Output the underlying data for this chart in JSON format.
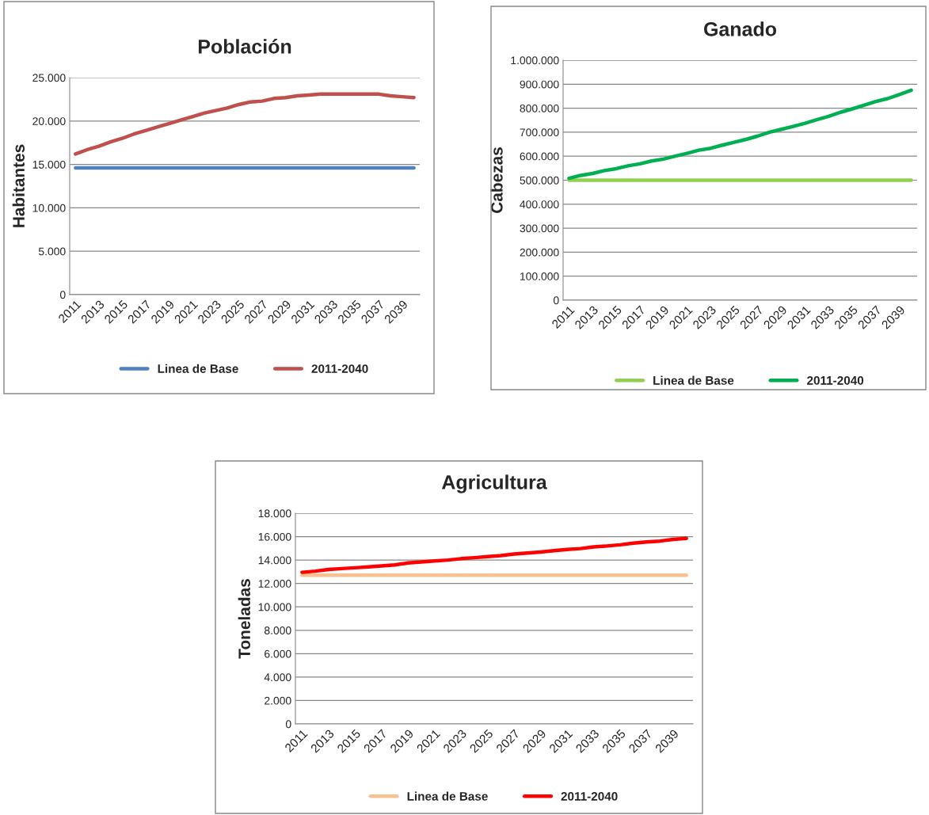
{
  "chart_data": [
    {
      "type": "line",
      "title": "Población",
      "ylabel": "Habitantes",
      "categories": [
        "2011",
        null,
        "2013",
        null,
        "2015",
        null,
        "2017",
        null,
        "2019",
        null,
        "2021",
        null,
        "2023",
        null,
        "2025",
        null,
        "2027",
        null,
        "2029",
        null,
        "2031",
        null,
        "2033",
        null,
        "2035",
        null,
        "2037",
        null,
        "2039",
        null
      ],
      "series": [
        {
          "name": "Linea de Base",
          "color": "#4f81bd",
          "values": [
            14600,
            14600,
            14600,
            14600,
            14600,
            14600,
            14600,
            14600,
            14600,
            14600,
            14600,
            14600,
            14600,
            14600,
            14600,
            14600,
            14600,
            14600,
            14600,
            14600,
            14600,
            14600,
            14600,
            14600,
            14600,
            14600,
            14600,
            14600,
            14600,
            14600
          ]
        },
        {
          "name": "2011-2040",
          "color": "#c0504d",
          "values": [
            16200,
            16700,
            17100,
            17600,
            18000,
            18500,
            18900,
            19300,
            19700,
            20100,
            20500,
            20900,
            21200,
            21500,
            21900,
            22200,
            22300,
            22600,
            22700,
            22900,
            23000,
            23100,
            23100,
            23100,
            23100,
            23100,
            23100,
            22900,
            22800,
            22700
          ]
        }
      ],
      "ylim": [
        0,
        25000
      ],
      "yticks": [
        {
          "value": 0,
          "label": "0"
        },
        {
          "value": 5000,
          "label": "5.000"
        },
        {
          "value": 10000,
          "label": "10.000"
        },
        {
          "value": 15000,
          "label": "15.000"
        },
        {
          "value": 20000,
          "label": "20.000"
        },
        {
          "value": 25000,
          "label": "25.000"
        }
      ],
      "grid": "y",
      "legend": "bottom",
      "line_style": "solid",
      "marker": "none"
    },
    {
      "type": "line",
      "title": "Ganado",
      "ylabel": "Cabezas",
      "categories": [
        "2011",
        null,
        "2013",
        null,
        "2015",
        null,
        "2017",
        null,
        "2019",
        null,
        "2021",
        null,
        "2023",
        null,
        "2025",
        null,
        "2027",
        null,
        "2029",
        null,
        "2031",
        null,
        "2033",
        null,
        "2035",
        null,
        "2037",
        null,
        "2039",
        null
      ],
      "series": [
        {
          "name": "Linea de Base",
          "color": "#92d050",
          "values": [
            500000,
            500000,
            500000,
            500000,
            500000,
            500000,
            500000,
            500000,
            500000,
            500000,
            500000,
            500000,
            500000,
            500000,
            500000,
            500000,
            500000,
            500000,
            500000,
            500000,
            500000,
            500000,
            500000,
            500000,
            500000,
            500000,
            500000,
            500000,
            500000,
            500000
          ]
        },
        {
          "name": "2011-2040",
          "color": "#00b050",
          "values": [
            508000,
            520000,
            528000,
            540000,
            548000,
            560000,
            568000,
            580000,
            588000,
            600000,
            612000,
            625000,
            633000,
            646000,
            658000,
            670000,
            684000,
            700000,
            712000,
            724000,
            737000,
            752000,
            766000,
            783000,
            797000,
            812000,
            828000,
            840000,
            857000,
            875000
          ]
        }
      ],
      "ylim": [
        0,
        1000000
      ],
      "yticks": [
        {
          "value": 0,
          "label": "0"
        },
        {
          "value": 100000,
          "label": "100.000"
        },
        {
          "value": 200000,
          "label": "200.000"
        },
        {
          "value": 300000,
          "label": "300.000"
        },
        {
          "value": 400000,
          "label": "400.000"
        },
        {
          "value": 500000,
          "label": "500.000"
        },
        {
          "value": 600000,
          "label": "600.000"
        },
        {
          "value": 700000,
          "label": "700.000"
        },
        {
          "value": 800000,
          "label": "800.000"
        },
        {
          "value": 900000,
          "label": "900.000"
        },
        {
          "value": 1000000,
          "label": "1.000.000"
        }
      ],
      "grid": "y",
      "legend": "bottom",
      "line_style": "solid",
      "marker": "none"
    },
    {
      "type": "line",
      "title": "Agricultura",
      "ylabel": "Toneladas",
      "categories": [
        "2011",
        null,
        "2013",
        null,
        "2015",
        null,
        "2017",
        null,
        "2019",
        null,
        "2021",
        null,
        "2023",
        null,
        "2025",
        null,
        "2027",
        null,
        "2029",
        null,
        "2031",
        null,
        "2033",
        null,
        "2035",
        null,
        "2037",
        null,
        "2039",
        null
      ],
      "series": [
        {
          "name": "Linea de Base",
          "color": "#fac090",
          "values": [
            12700,
            12700,
            12700,
            12700,
            12700,
            12700,
            12700,
            12700,
            12700,
            12700,
            12700,
            12700,
            12700,
            12700,
            12700,
            12700,
            12700,
            12700,
            12700,
            12700,
            12700,
            12700,
            12700,
            12700,
            12700,
            12700,
            12700,
            12700,
            12700,
            12700
          ]
        },
        {
          "name": "2011-2040",
          "color": "#ff0000",
          "values": [
            12950,
            13050,
            13200,
            13270,
            13340,
            13420,
            13500,
            13580,
            13750,
            13840,
            13920,
            14000,
            14120,
            14200,
            14290,
            14380,
            14520,
            14600,
            14680,
            14800,
            14900,
            14980,
            15120,
            15200,
            15300,
            15450,
            15550,
            15620,
            15770,
            15850
          ]
        }
      ],
      "ylim": [
        0,
        18000
      ],
      "yticks": [
        {
          "value": 0,
          "label": "0"
        },
        {
          "value": 2000,
          "label": "2.000"
        },
        {
          "value": 4000,
          "label": "4.000"
        },
        {
          "value": 6000,
          "label": "6.000"
        },
        {
          "value": 8000,
          "label": "8.000"
        },
        {
          "value": 10000,
          "label": "10.000"
        },
        {
          "value": 12000,
          "label": "12.000"
        },
        {
          "value": 14000,
          "label": "14.000"
        },
        {
          "value": 16000,
          "label": "16.000"
        },
        {
          "value": 18000,
          "label": "18.000"
        }
      ],
      "grid": "y",
      "legend": "bottom",
      "line_style": "solid",
      "marker": "none"
    }
  ]
}
